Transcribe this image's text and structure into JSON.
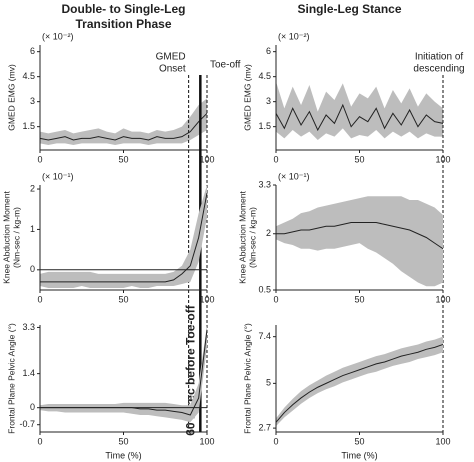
{
  "chart_data": [
    {
      "type": "line",
      "title": [
        "Double- to Single-Leg",
        "Transition Phase"
      ],
      "ylabel": [
        "GMED EMG (mv)"
      ],
      "y_multiplier": "(× 10⁻²)",
      "x": [
        0,
        5,
        10,
        15,
        20,
        25,
        30,
        35,
        40,
        45,
        50,
        55,
        60,
        65,
        70,
        75,
        80,
        85,
        90,
        95,
        100
      ],
      "values": [
        0.8,
        0.7,
        0.8,
        0.9,
        0.7,
        0.8,
        0.8,
        0.9,
        0.8,
        0.7,
        0.9,
        0.8,
        0.8,
        0.7,
        0.9,
        0.8,
        0.8,
        0.9,
        1.2,
        1.8,
        2.3
      ],
      "lower": [
        0.5,
        0.4,
        0.5,
        0.5,
        0.4,
        0.5,
        0.5,
        0.5,
        0.5,
        0.4,
        0.5,
        0.5,
        0.5,
        0.4,
        0.5,
        0.5,
        0.5,
        0.5,
        0.7,
        1.0,
        1.3
      ],
      "upper": [
        1.2,
        1.1,
        1.2,
        1.3,
        1.1,
        1.2,
        1.3,
        1.4,
        1.2,
        1.1,
        1.4,
        1.2,
        1.2,
        1.1,
        1.3,
        1.2,
        1.3,
        1.5,
        2.1,
        2.8,
        3.2
      ],
      "xlim": [
        0,
        100
      ],
      "xticks": [
        0,
        50,
        100
      ],
      "ylim": [
        0.1,
        6.4
      ],
      "yticks": [
        1.5,
        3.0,
        4.5,
        6.0
      ],
      "color": "#222222",
      "band_color": "#bdbdbd",
      "markers": [
        {
          "x": 89,
          "label": [
            "GMED",
            "Onset"
          ],
          "style": "dashed"
        },
        {
          "x": 100,
          "label": [
            "Toe-off"
          ],
          "style": "dashed"
        },
        {
          "x": 96,
          "label": [
            "60 msec before Toe-off"
          ],
          "style": "solid"
        }
      ]
    },
    {
      "type": "line",
      "title": [
        "Single-Leg Stance"
      ],
      "ylabel": [
        "GMED EMG (mv)"
      ],
      "y_multiplier": "(× 10⁻²)",
      "x": [
        0,
        5,
        10,
        15,
        20,
        25,
        30,
        35,
        40,
        45,
        50,
        55,
        60,
        65,
        70,
        75,
        80,
        85,
        90,
        95,
        100
      ],
      "values": [
        2.3,
        1.4,
        2.6,
        1.6,
        2.4,
        1.3,
        2.2,
        1.7,
        2.8,
        1.5,
        2.1,
        1.8,
        2.6,
        1.4,
        2.3,
        1.6,
        2.5,
        1.5,
        2.2,
        1.8,
        1.7
      ],
      "lower": [
        1.2,
        0.8,
        1.3,
        0.9,
        1.2,
        0.7,
        1.1,
        0.9,
        1.4,
        0.8,
        1.0,
        0.9,
        1.3,
        0.8,
        1.2,
        0.9,
        1.2,
        0.8,
        1.1,
        0.9,
        0.9
      ],
      "upper": [
        4.2,
        2.6,
        3.9,
        2.8,
        4.0,
        2.4,
        3.6,
        3.1,
        4.1,
        2.7,
        3.5,
        3.2,
        3.9,
        2.6,
        3.7,
        2.9,
        3.8,
        2.7,
        3.5,
        3.0,
        2.6
      ],
      "xlim": [
        0,
        100
      ],
      "xticks": [
        0,
        50,
        100
      ],
      "ylim": [
        0.1,
        6.4
      ],
      "yticks": [
        1.5,
        3.0,
        4.5,
        6.0
      ],
      "color": "#222222",
      "band_color": "#bdbdbd",
      "markers": [
        {
          "x": 100,
          "label": [
            "Initiation of",
            "descending"
          ],
          "style": "dashed"
        }
      ]
    },
    {
      "type": "line",
      "ylabel": [
        "Knee Abduction Moment",
        "(Nm-sec / kg-m)"
      ],
      "y_multiplier": "(× 10⁻¹)",
      "x": [
        0,
        5,
        10,
        15,
        20,
        25,
        30,
        35,
        40,
        45,
        50,
        55,
        60,
        65,
        70,
        75,
        80,
        85,
        90,
        95,
        100
      ],
      "values": [
        -0.3,
        -0.3,
        -0.3,
        -0.3,
        -0.3,
        -0.3,
        -0.3,
        -0.3,
        -0.3,
        -0.3,
        -0.3,
        -0.3,
        -0.3,
        -0.3,
        -0.3,
        -0.3,
        -0.25,
        -0.1,
        0.1,
        0.8,
        1.9
      ],
      "lower": [
        -0.4,
        -0.45,
        -0.45,
        -0.45,
        -0.45,
        -0.4,
        -0.45,
        -0.45,
        -0.45,
        -0.45,
        -0.45,
        -0.4,
        -0.45,
        -0.45,
        -0.4,
        -0.4,
        -0.4,
        -0.35,
        -0.3,
        0.2,
        1.3
      ],
      "upper": [
        -0.1,
        -0.05,
        -0.05,
        -0.05,
        -0.05,
        -0.05,
        -0.05,
        -0.1,
        -0.1,
        -0.1,
        -0.1,
        -0.1,
        -0.1,
        -0.1,
        -0.1,
        -0.1,
        -0.05,
        0.1,
        0.5,
        1.4,
        2.1
      ],
      "xlim": [
        0,
        100
      ],
      "xticks": [
        0,
        50,
        100
      ],
      "ylim": [
        -0.5,
        2.1
      ],
      "yticks": [
        0,
        1,
        2
      ],
      "hline": 0,
      "color": "#222222",
      "band_color": "#bdbdbd"
    },
    {
      "type": "line",
      "ylabel": [
        "Knee Abduction Moment",
        "(Nm-sec / kg-m)"
      ],
      "y_multiplier": "(× 10⁻¹)",
      "x": [
        0,
        5,
        10,
        15,
        20,
        25,
        30,
        35,
        40,
        45,
        50,
        55,
        60,
        65,
        70,
        75,
        80,
        85,
        90,
        95,
        100
      ],
      "values": [
        2.0,
        2.0,
        2.05,
        2.1,
        2.1,
        2.15,
        2.2,
        2.2,
        2.25,
        2.3,
        2.3,
        2.3,
        2.3,
        2.25,
        2.2,
        2.15,
        2.1,
        2.0,
        1.9,
        1.75,
        1.6
      ],
      "lower": [
        1.85,
        1.75,
        1.7,
        1.6,
        1.6,
        1.55,
        1.6,
        1.6,
        1.65,
        1.7,
        1.75,
        1.6,
        1.5,
        1.35,
        1.2,
        1.0,
        0.85,
        0.7,
        0.6,
        0.6,
        0.7
      ],
      "upper": [
        2.2,
        2.3,
        2.4,
        2.55,
        2.6,
        2.7,
        2.75,
        2.8,
        2.85,
        2.9,
        2.95,
        3.0,
        3.0,
        3.0,
        3.0,
        3.0,
        2.9,
        2.9,
        2.8,
        2.7,
        2.5
      ],
      "xlim": [
        0,
        100
      ],
      "xticks": [
        0,
        50,
        100
      ],
      "ylim": [
        0.5,
        3.3
      ],
      "yticks": [
        0.5,
        2.0,
        3.3
      ],
      "color": "#222222",
      "band_color": "#bdbdbd"
    },
    {
      "type": "line",
      "ylabel": [
        "Frontal Plane Pelvic Angle (°)"
      ],
      "xlabel": "Time (%)",
      "x": [
        0,
        5,
        10,
        15,
        20,
        25,
        30,
        35,
        40,
        45,
        50,
        55,
        60,
        65,
        70,
        75,
        80,
        85,
        90,
        95,
        100
      ],
      "values": [
        0,
        0,
        0,
        0,
        0,
        0,
        0,
        0,
        0,
        0,
        0,
        0,
        -0.05,
        -0.05,
        -0.1,
        -0.1,
        -0.15,
        -0.2,
        -0.3,
        0.4,
        3.2
      ],
      "lower": [
        -0.1,
        -0.15,
        -0.15,
        -0.2,
        -0.2,
        -0.2,
        -0.2,
        -0.2,
        -0.2,
        -0.2,
        -0.2,
        -0.25,
        -0.3,
        -0.3,
        -0.35,
        -0.4,
        -0.45,
        -0.5,
        -0.6,
        -0.2,
        2.5
      ],
      "upper": [
        0.1,
        0.15,
        0.15,
        0.15,
        0.15,
        0.15,
        0.15,
        0.15,
        0.15,
        0.15,
        0.2,
        0.2,
        0.2,
        0.2,
        0.2,
        0.2,
        0.15,
        0.1,
        0.1,
        1.0,
        3.4
      ],
      "xlim": [
        0,
        100
      ],
      "xticks": [
        0,
        50,
        100
      ],
      "ylim": [
        -1.0,
        3.4
      ],
      "yticks": [
        -0.7,
        0,
        1.4,
        3.3
      ],
      "hline": 0,
      "color": "#222222",
      "band_color": "#bdbdbd"
    },
    {
      "type": "line",
      "ylabel": [
        "Frontal Plane Pelvic Angle (°)"
      ],
      "xlabel": "Time (%)",
      "x": [
        0,
        5,
        10,
        15,
        20,
        25,
        30,
        35,
        40,
        45,
        50,
        55,
        60,
        65,
        70,
        75,
        80,
        85,
        90,
        95,
        100
      ],
      "values": [
        3.0,
        3.5,
        3.9,
        4.25,
        4.55,
        4.8,
        5.0,
        5.2,
        5.4,
        5.55,
        5.7,
        5.85,
        6.0,
        6.1,
        6.25,
        6.4,
        6.5,
        6.6,
        6.75,
        6.85,
        7.0
      ],
      "lower": [
        2.8,
        3.25,
        3.6,
        3.95,
        4.25,
        4.5,
        4.7,
        4.85,
        5.05,
        5.2,
        5.35,
        5.5,
        5.6,
        5.75,
        5.9,
        6.0,
        6.1,
        6.25,
        6.35,
        6.45,
        6.6
      ],
      "upper": [
        3.2,
        3.75,
        4.2,
        4.6,
        4.9,
        5.15,
        5.4,
        5.6,
        5.8,
        5.95,
        6.1,
        6.25,
        6.4,
        6.5,
        6.65,
        6.8,
        6.9,
        7.0,
        7.15,
        7.25,
        7.4
      ],
      "xlim": [
        0,
        100
      ],
      "xticks": [
        0,
        50,
        100
      ],
      "ylim": [
        2.5,
        8.0
      ],
      "yticks": [
        2.7,
        5.0,
        7.4
      ],
      "color": "#222222",
      "band_color": "#bdbdbd"
    }
  ]
}
